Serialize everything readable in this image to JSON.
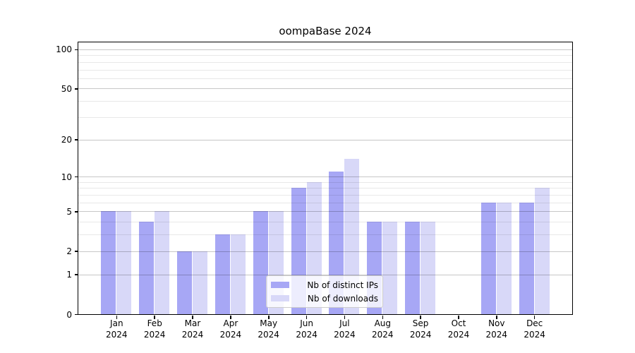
{
  "chart_data": {
    "type": "bar",
    "title": "oompaBase 2024",
    "categories": [
      "Jan 2024",
      "Feb 2024",
      "Mar 2024",
      "Apr 2024",
      "May 2024",
      "Jun 2024",
      "Jul 2024",
      "Aug 2024",
      "Sep 2024",
      "Oct 2024",
      "Nov 2024",
      "Dec 2024"
    ],
    "x_tick_month": [
      "Jan",
      "Feb",
      "Mar",
      "Apr",
      "May",
      "Jun",
      "Jul",
      "Aug",
      "Sep",
      "Oct",
      "Nov",
      "Dec"
    ],
    "x_tick_year": "2024",
    "series": [
      {
        "name": "Nb of distinct IPs",
        "color": "#a7a7f5",
        "values": [
          5,
          4,
          2,
          3,
          5,
          8,
          11,
          4,
          4,
          0,
          6,
          6
        ]
      },
      {
        "name": "Nb of downloads",
        "color": "#d8d8f8",
        "values": [
          5,
          5,
          2,
          3,
          5,
          9,
          14,
          4,
          4,
          0,
          6,
          8
        ]
      }
    ],
    "yscale": "log1p",
    "ylim": [
      0,
      113
    ],
    "yticks": [
      0,
      1,
      2,
      5,
      10,
      20,
      50,
      100
    ],
    "minor_gridlines": [
      3,
      4,
      6,
      7,
      8,
      9,
      30,
      40,
      60,
      70,
      80,
      90
    ],
    "grid": "on",
    "legend_position": "lower-center"
  }
}
